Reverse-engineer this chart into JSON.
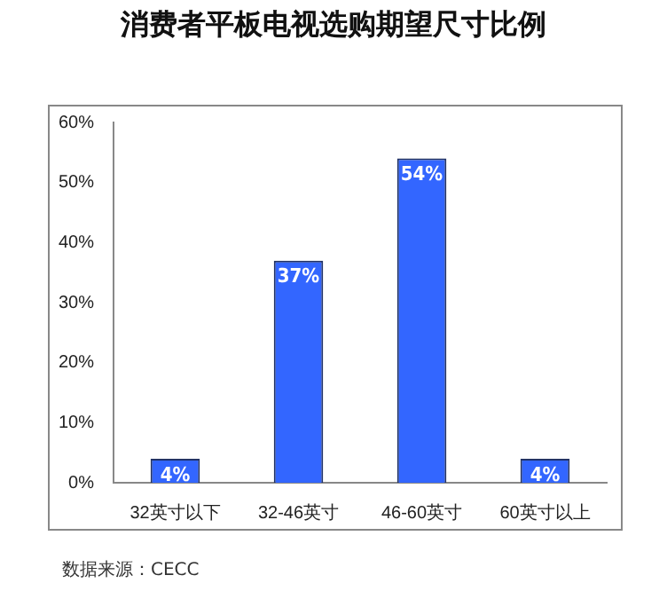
{
  "chart_data": {
    "type": "bar",
    "title": "消费者平板电视选购期望尺寸比例",
    "categories": [
      "32英寸以下",
      "32-46英寸",
      "46-60英寸",
      "60英寸以上"
    ],
    "values": [
      4,
      37,
      54,
      4
    ],
    "color": "#3366ff",
    "value_labels": [
      "4%",
      "37%",
      "54%",
      "4%"
    ],
    "ylim": [
      0,
      60
    ],
    "yticks": [
      {
        "value": 0,
        "label": "0%"
      },
      {
        "value": 10,
        "label": "10%"
      },
      {
        "value": 20,
        "label": "20%"
      },
      {
        "value": 30,
        "label": "30%"
      },
      {
        "value": 40,
        "label": "40%"
      },
      {
        "value": 50,
        "label": "50%"
      },
      {
        "value": 60,
        "label": "60%"
      }
    ],
    "grid": false,
    "legend": false,
    "annotations": [
      "数据来源：CECC"
    ]
  }
}
